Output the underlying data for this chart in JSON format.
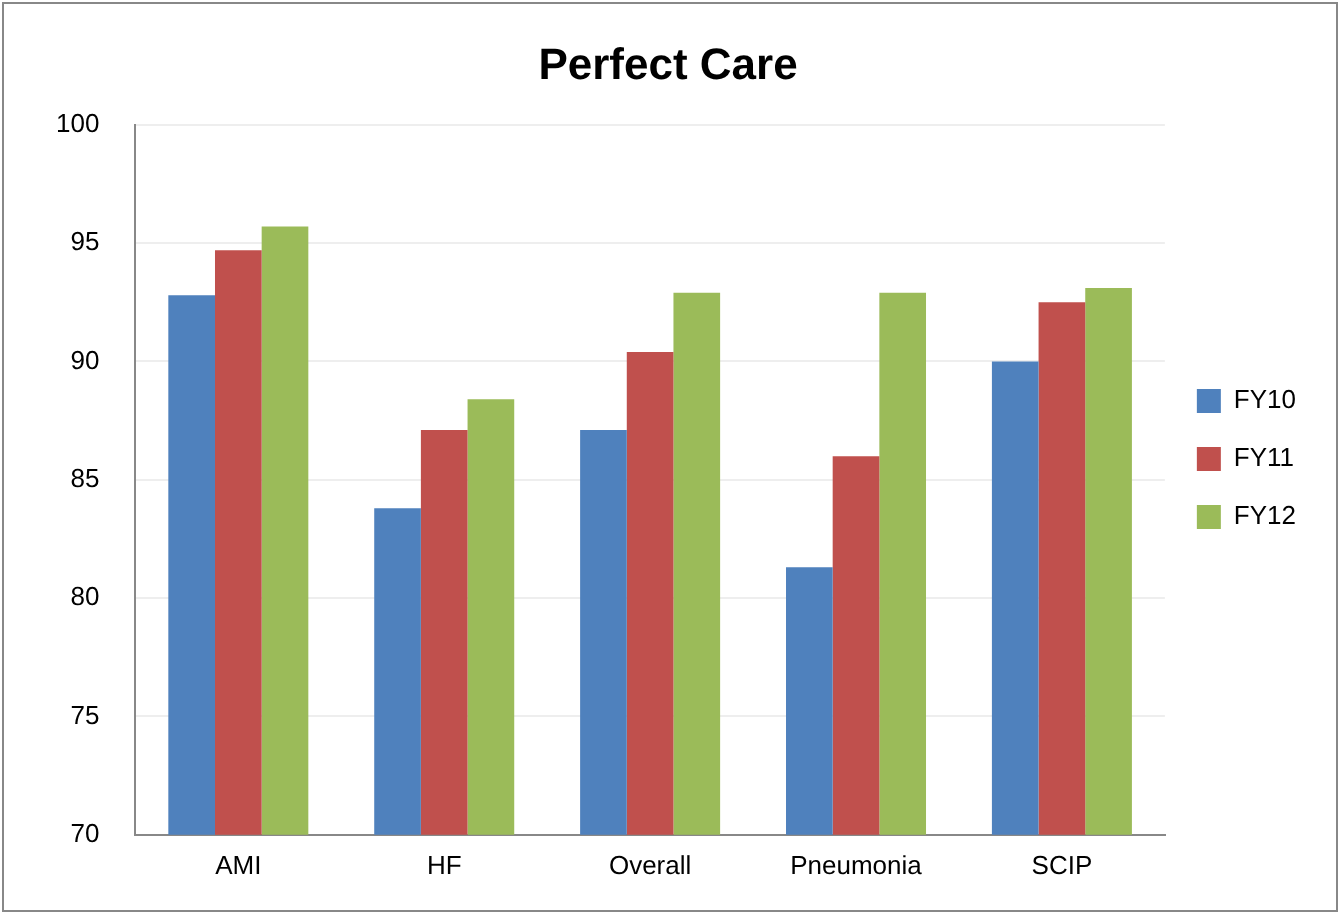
{
  "chart_data": {
    "type": "bar",
    "title": "Perfect Care",
    "categories": [
      "AMI",
      "HF",
      "Overall",
      "Pneumonia",
      "SCIP"
    ],
    "series": [
      {
        "name": "FY10",
        "color": "#4f81bd",
        "values": [
          92.8,
          83.8,
          87.1,
          81.3,
          90.0
        ]
      },
      {
        "name": "FY11",
        "color": "#c0504d",
        "values": [
          94.7,
          87.1,
          90.4,
          86.0,
          92.5
        ]
      },
      {
        "name": "FY12",
        "color": "#9bbb59",
        "values": [
          95.7,
          88.4,
          92.9,
          92.9,
          93.1
        ]
      }
    ],
    "ylim": [
      70,
      100
    ],
    "yticks": [
      70,
      75,
      80,
      85,
      90,
      95,
      100
    ],
    "grid": "y",
    "legend": "right"
  }
}
